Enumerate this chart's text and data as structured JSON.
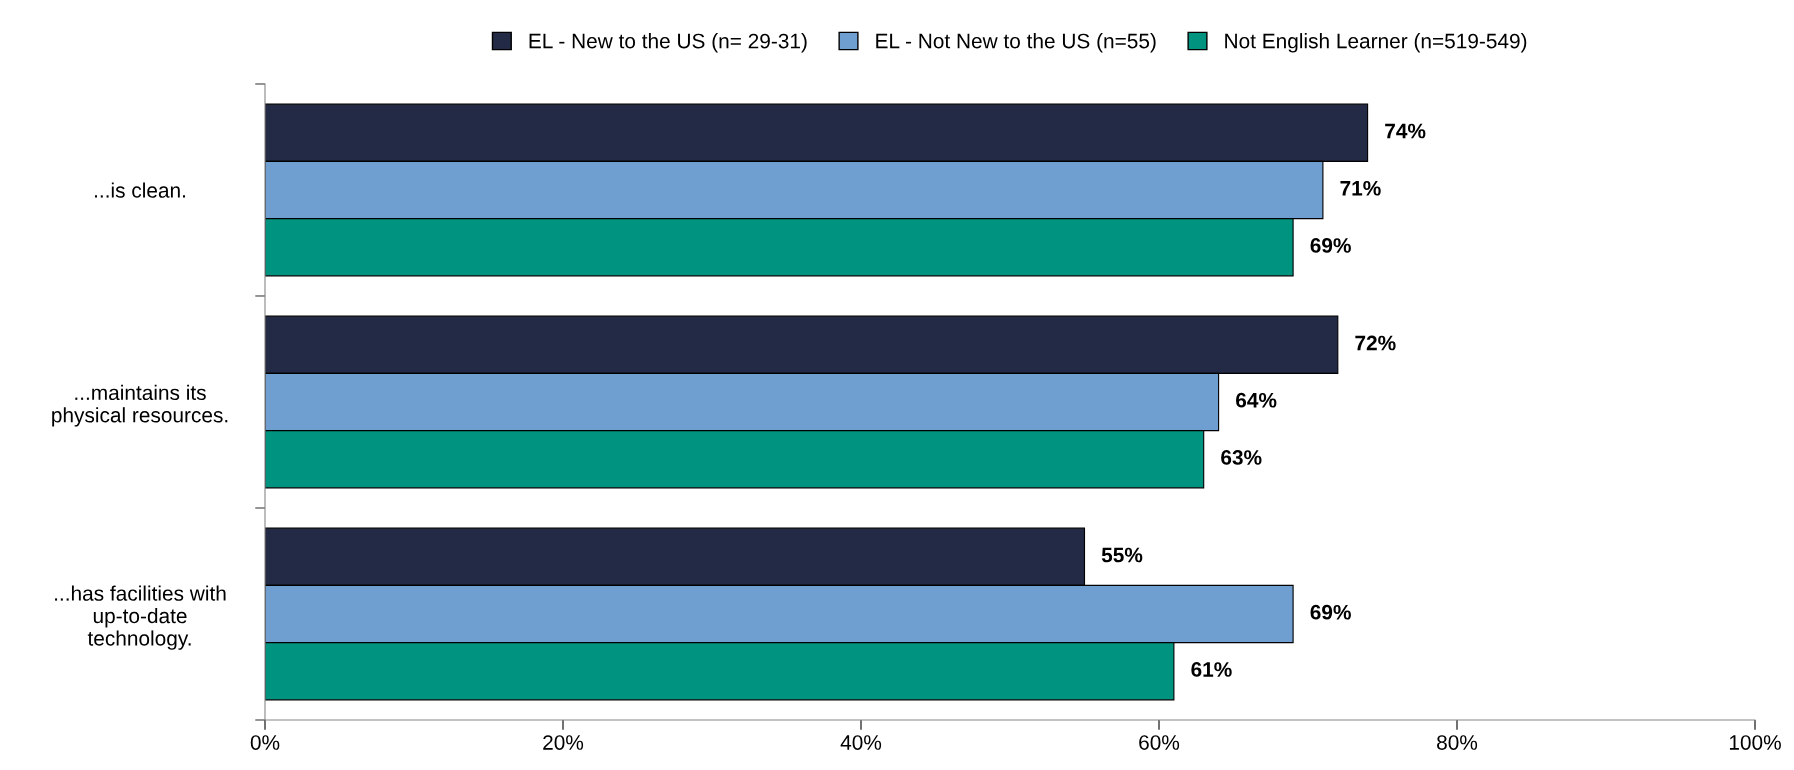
{
  "chart_data": {
    "type": "bar",
    "orientation": "horizontal",
    "categories": [
      "...is clean.",
      "...maintains its\nphysical resources.",
      "...has facilities with\nup-to-date\ntechnology."
    ],
    "series": [
      {
        "name": "EL - New to the US (n= 29-31)",
        "color": "#222a45",
        "values": [
          74,
          72,
          55
        ],
        "value_labels": [
          "74%",
          "72%",
          "55%"
        ]
      },
      {
        "name": "EL - Not New to the US (n=55)",
        "color": "#6f9fd0",
        "values": [
          71,
          64,
          69
        ],
        "value_labels": [
          "71%",
          "64%",
          "69%"
        ]
      },
      {
        "name": "Not English Learner (n=519-549)",
        "color": "#009480",
        "values": [
          69,
          63,
          61
        ],
        "value_labels": [
          "69%",
          "63%",
          "61%"
        ]
      }
    ],
    "xlim": [
      0,
      100
    ],
    "xticks": [
      {
        "value": 0,
        "label": "0%"
      },
      {
        "value": 20,
        "label": "20%"
      },
      {
        "value": 40,
        "label": "40%"
      },
      {
        "value": 60,
        "label": "60%"
      },
      {
        "value": 80,
        "label": "80%"
      },
      {
        "value": 100,
        "label": "100%"
      }
    ],
    "grid": false,
    "legend": "top"
  }
}
